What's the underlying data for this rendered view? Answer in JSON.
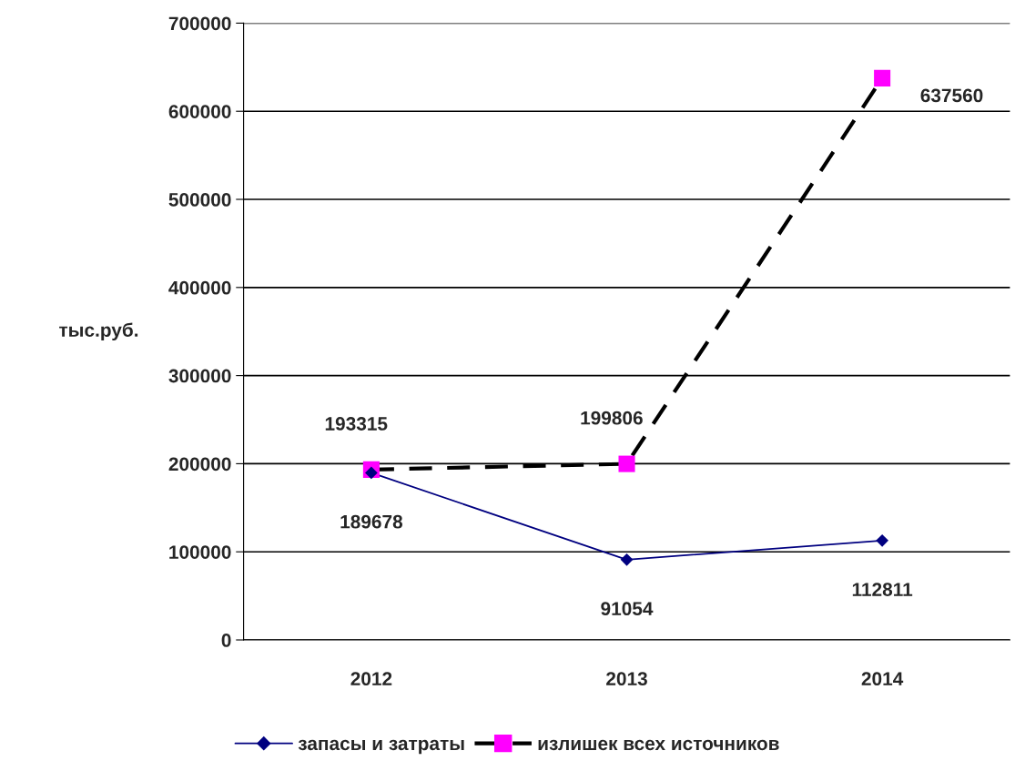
{
  "chart_data": {
    "type": "line",
    "ylabel": "тыс.руб.",
    "categories": [
      "2012",
      "2013",
      "2014"
    ],
    "series": [
      {
        "name": "запасы и затраты",
        "color": "#000080",
        "values": [
          189678,
          91054,
          112811
        ],
        "marker": "diamond",
        "line_style": "solid"
      },
      {
        "name": "излишек всех источников",
        "color": "#000000",
        "colors": [
          "#ff00ff",
          "#ff00ff",
          "#ff00ff"
        ],
        "values": [
          193315,
          199806,
          637560
        ],
        "marker": "square",
        "line_style": "dashed"
      }
    ],
    "ylim": [
      0,
      700000
    ],
    "yticks": [
      0,
      100000,
      200000,
      300000,
      400000,
      500000,
      600000,
      700000
    ],
    "grid": "y",
    "legend": "bottom",
    "data_labels": true
  }
}
